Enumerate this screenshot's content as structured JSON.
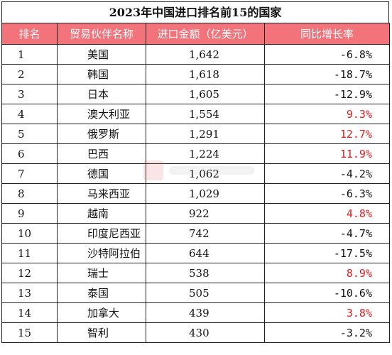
{
  "title": "2023年中国进口排名前15的国家",
  "headers": {
    "rank": "排名",
    "partner": "贸易伙伴名称",
    "amount": "进口金额（亿美元）",
    "growth": "同比增长率"
  },
  "colors": {
    "header_bg": "#f2737a",
    "positive": "#e02020",
    "negative": "#111111"
  },
  "rows": [
    {
      "rank": "1",
      "partner": "美国",
      "amount": "1,642",
      "growth": "-6.8%",
      "positive": false
    },
    {
      "rank": "2",
      "partner": "韩国",
      "amount": "1,618",
      "growth": "-18.7%",
      "positive": false
    },
    {
      "rank": "3",
      "partner": "日本",
      "amount": "1,605",
      "growth": "-12.9%",
      "positive": false
    },
    {
      "rank": "4",
      "partner": "澳大利亚",
      "amount": "1,554",
      "growth": "9.3%",
      "positive": true
    },
    {
      "rank": "5",
      "partner": "俄罗斯",
      "amount": "1,291",
      "growth": "12.7%",
      "positive": true
    },
    {
      "rank": "6",
      "partner": "巴西",
      "amount": "1,224",
      "growth": "11.9%",
      "positive": true
    },
    {
      "rank": "7",
      "partner": "德国",
      "amount": "1,062",
      "growth": "-4.2%",
      "positive": false
    },
    {
      "rank": "8",
      "partner": "马来西亚",
      "amount": "1,029",
      "growth": "-6.3%",
      "positive": false
    },
    {
      "rank": "9",
      "partner": "越南",
      "amount": "922",
      "growth": "4.8%",
      "positive": true
    },
    {
      "rank": "10",
      "partner": "印度尼西亚",
      "amount": "742",
      "growth": "-4.7%",
      "positive": false
    },
    {
      "rank": "11",
      "partner": "沙特阿拉伯",
      "amount": "644",
      "growth": "-17.5%",
      "positive": false
    },
    {
      "rank": "12",
      "partner": "瑞士",
      "amount": "538",
      "growth": "8.9%",
      "positive": true
    },
    {
      "rank": "13",
      "partner": "泰国",
      "amount": "505",
      "growth": "-10.6%",
      "positive": false
    },
    {
      "rank": "14",
      "partner": "加拿大",
      "amount": "439",
      "growth": "3.8%",
      "positive": true
    },
    {
      "rank": "15",
      "partner": "智利",
      "amount": "430",
      "growth": "-3.2%",
      "positive": false
    }
  ]
}
